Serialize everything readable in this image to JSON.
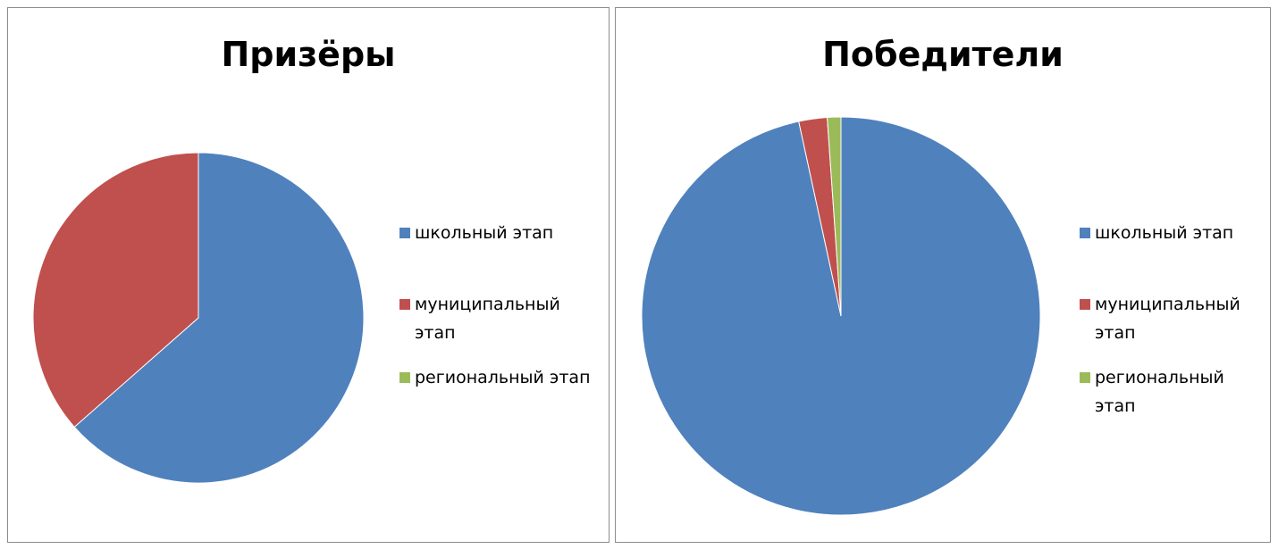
{
  "chart_data": [
    {
      "type": "pie",
      "title": "Призёры",
      "categories": [
        "школьный этап",
        "муниципальный этап",
        "региональный этап"
      ],
      "values": [
        63.5,
        36.5,
        0
      ],
      "colors": [
        "#4F81BD",
        "#C0504D",
        "#9BBB59"
      ],
      "start_angle_deg": 0,
      "direction": "clockwise",
      "legend_position": "right"
    },
    {
      "type": "pie",
      "title": "Победители",
      "categories": [
        "школьный этап",
        "муниципальный этап",
        "региональный этап"
      ],
      "values": [
        96.6,
        2.3,
        1.1
      ],
      "colors": [
        "#4F81BD",
        "#C0504D",
        "#9BBB59"
      ],
      "start_angle_deg": 0,
      "direction": "clockwise",
      "legend_position": "right"
    }
  ]
}
